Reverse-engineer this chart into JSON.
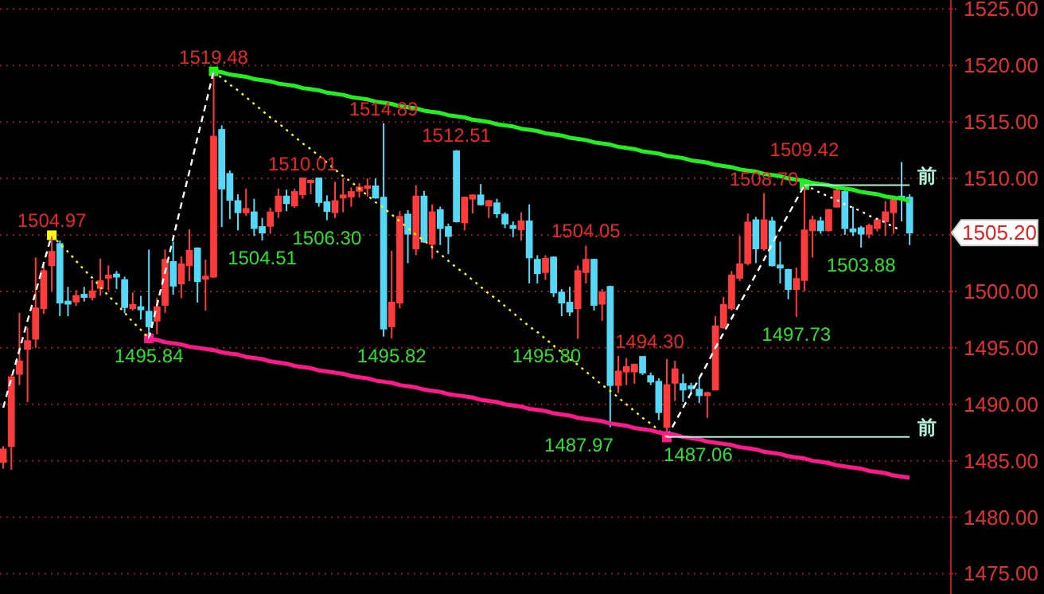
{
  "chart_data": {
    "type": "candlestick",
    "categories": [
      null,
      null,
      null,
      null,
      null,
      null,
      null,
      null,
      null,
      null,
      null,
      null,
      null,
      null,
      null,
      null,
      null,
      null,
      null,
      null,
      null,
      null,
      null,
      null,
      null,
      null,
      null,
      null,
      null,
      null,
      null,
      null,
      null,
      null,
      null,
      null,
      null,
      null,
      null,
      null,
      null,
      null,
      null,
      null,
      null,
      null,
      null,
      null,
      null,
      null,
      null,
      null,
      null,
      null,
      null,
      null,
      null,
      null,
      null,
      null,
      null,
      null,
      null,
      null,
      null,
      null,
      null,
      null,
      null,
      null,
      null,
      null,
      null,
      null,
      null,
      null,
      null,
      null,
      null,
      null,
      null,
      null,
      null,
      null,
      null,
      null,
      null,
      null,
      null,
      null,
      null,
      null,
      null,
      null,
      null,
      null,
      null,
      null,
      null,
      null,
      null,
      null,
      null,
      null,
      null,
      null,
      null,
      null,
      null,
      null,
      null,
      null,
      null
    ],
    "ylim": [
      1473.2,
      1525.8
    ],
    "yticks": [
      {
        "value": 1475,
        "label": "1475.00"
      },
      {
        "value": 1480,
        "label": "1480.00"
      },
      {
        "value": 1485,
        "label": "1485.00"
      },
      {
        "value": 1490,
        "label": "1490.00"
      },
      {
        "value": 1495,
        "label": "1495.00"
      },
      {
        "value": 1500,
        "label": "1500.00"
      },
      {
        "value": 1505,
        "label": null
      },
      {
        "value": 1510,
        "label": "1510.00"
      },
      {
        "value": 1515,
        "label": "1515.00"
      },
      {
        "value": 1520,
        "label": "1520.00"
      },
      {
        "value": 1525,
        "label": "1525.00"
      }
    ],
    "grid": "y",
    "tick_labels": "y",
    "legend": "right",
    "series": [
      {
        "ohlc": [
          [
            1484.9,
            1486.3,
            1484.3,
            1486.0
          ],
          [
            1486.3,
            1492.6,
            1484.2,
            1492.4
          ],
          [
            1492.7,
            1498.1,
            1491.7,
            1493.8
          ],
          [
            1494.9,
            1496.8,
            1490.2,
            1495.6
          ],
          [
            1495.8,
            1503.0,
            1495.0,
            1498.5
          ],
          [
            1498.5,
            1502.3,
            1498.0,
            1501.8
          ],
          [
            1502.3,
            1504.97,
            1500.0,
            1503.5
          ],
          [
            1504.2,
            1504.5,
            1497.8,
            1499.0
          ],
          [
            1499.1,
            1500.4,
            1497.8,
            1498.9
          ],
          [
            1499.1,
            1500.1,
            1498.7,
            1499.6
          ],
          [
            1499.7,
            1500.4,
            1499.1,
            1499.5
          ],
          [
            1499.5,
            1501.0,
            1499.2,
            1500.0
          ],
          [
            1500.3,
            1502.9,
            1499.6,
            1500.9
          ],
          [
            1501.2,
            1502.3,
            1500.1,
            1501.4
          ],
          [
            1501.5,
            1501.8,
            1500.2,
            1501.3
          ],
          [
            1501.0,
            1501.3,
            1498.1,
            1498.6
          ],
          [
            1498.5,
            1499.9,
            1498.3,
            1498.8
          ],
          [
            1498.6,
            1499.6,
            1497.5,
            1498.4
          ],
          [
            1498.2,
            1503.7,
            1495.84,
            1496.9
          ],
          [
            1497.4,
            1499.4,
            1496.2,
            1498.6
          ],
          [
            1498.8,
            1503.7,
            1498.1,
            1502.8
          ],
          [
            1502.6,
            1504.4,
            1499.7,
            1500.5
          ],
          [
            1500.7,
            1503.1,
            1499.4,
            1502.4
          ],
          [
            1502.3,
            1505.5,
            1500.9,
            1503.6
          ],
          [
            1503.8,
            1503.9,
            1499.0,
            1500.9
          ],
          [
            1501.1,
            1502.8,
            1498.3,
            1501.3
          ],
          [
            1501.3,
            1519.48,
            1501.2,
            1513.7
          ],
          [
            1514.3,
            1514.7,
            1505.7,
            1509.1
          ],
          [
            1510.4,
            1510.7,
            1506.4,
            1508.1
          ],
          [
            1508.0,
            1508.6,
            1505.4,
            1507.0
          ],
          [
            1507.0,
            1509.1,
            1506.7,
            1507.3
          ],
          [
            1507.0,
            1508.2,
            1504.9,
            1505.6
          ],
          [
            1505.7,
            1506.5,
            1504.51,
            1505.2
          ],
          [
            1505.8,
            1507.4,
            1505.1,
            1507.0
          ],
          [
            1507.1,
            1509.1,
            1506.5,
            1508.4
          ],
          [
            1508.4,
            1509.0,
            1507.1,
            1507.8
          ],
          [
            1507.6,
            1509.1,
            1507.4,
            1508.8
          ],
          [
            1508.6,
            1510.01,
            1508.2,
            1510.0
          ],
          [
            1509.7,
            1509.9,
            1508.6,
            1509.8
          ],
          [
            1510.0,
            1510.0,
            1507.5,
            1507.9
          ],
          [
            1507.9,
            1508.5,
            1506.3,
            1507.1
          ],
          [
            1507.0,
            1509.7,
            1506.5,
            1508.0
          ],
          [
            1508.3,
            1510.0,
            1507.0,
            1508.5
          ],
          [
            1508.4,
            1509.2,
            1507.5,
            1508.8
          ],
          [
            1508.9,
            1509.6,
            1508.3,
            1509.2
          ],
          [
            1509.2,
            1510.0,
            1508.4,
            1509.3
          ],
          [
            1509.3,
            1510.0,
            1508.2,
            1508.3
          ],
          [
            1508.3,
            1514.89,
            1496.0,
            1496.7
          ],
          [
            1496.9,
            1503.6,
            1495.82,
            1499.0
          ],
          [
            1499.0,
            1507.1,
            1498.5,
            1506.6
          ],
          [
            1506.8,
            1507.2,
            1502.5,
            1505.1
          ],
          [
            1503.8,
            1509.4,
            1503.2,
            1508.4
          ],
          [
            1508.4,
            1508.9,
            1504.3,
            1504.4
          ],
          [
            1504.2,
            1507.7,
            1502.9,
            1507.0
          ],
          [
            1507.2,
            1507.5,
            1504.1,
            1505.6
          ],
          [
            1505.7,
            1506.0,
            1503.3,
            1504.9
          ],
          [
            1512.4,
            1512.51,
            1506.1,
            1506.2
          ],
          [
            1506.1,
            1508.4,
            1505.4,
            1508.3
          ],
          [
            1508.2,
            1508.6,
            1506.9,
            1508.5
          ],
          [
            1508.5,
            1509.5,
            1507.6,
            1507.7
          ],
          [
            1507.6,
            1508.1,
            1506.5,
            1508.0
          ],
          [
            1507.8,
            1508.2,
            1506.5,
            1506.9
          ],
          [
            1506.8,
            1507.0,
            1505.6,
            1506.0
          ],
          [
            1505.8,
            1506.2,
            1504.8,
            1505.6
          ],
          [
            1505.5,
            1507.0,
            1504.5,
            1506.2
          ],
          [
            1506.2,
            1507.7,
            1500.7,
            1503.0
          ],
          [
            1502.8,
            1503.2,
            1500.7,
            1501.6
          ],
          [
            1501.7,
            1503.2,
            1501.0,
            1502.9
          ],
          [
            1503.0,
            1503.1,
            1499.5,
            1499.9
          ],
          [
            1499.9,
            1500.2,
            1497.8,
            1499.0
          ],
          [
            1499.0,
            1500.4,
            1497.8,
            1498.2
          ],
          [
            1498.5,
            1502.3,
            1495.8,
            1501.8
          ],
          [
            1501.7,
            1504.05,
            1500.7,
            1502.8
          ],
          [
            1502.8,
            1502.9,
            1498.3,
            1498.8
          ],
          [
            1498.9,
            1500.2,
            1497.4,
            1499.9
          ],
          [
            1500.4,
            1500.5,
            1487.97,
            1491.7
          ],
          [
            1491.7,
            1494.3,
            1491.0,
            1492.9
          ],
          [
            1492.9,
            1494.1,
            1491.7,
            1493.3
          ],
          [
            1492.9,
            1493.6,
            1491.8,
            1493.5
          ],
          [
            1494.2,
            1494.2,
            1492.6,
            1492.8
          ],
          [
            1492.5,
            1492.8,
            1491.7,
            1492.0
          ],
          [
            1492.0,
            1492.3,
            1488.6,
            1489.3
          ],
          [
            1488.0,
            1494.0,
            1487.06,
            1491.7
          ],
          [
            1491.9,
            1493.85,
            1490.3,
            1493.1
          ],
          [
            1491.8,
            1492.7,
            1490.2,
            1491.3
          ],
          [
            1491.6,
            1491.9,
            1490.9,
            1491.4
          ],
          [
            1491.3,
            1492.4,
            1490.1,
            1490.8
          ],
          [
            1490.8,
            1491.1,
            1488.8,
            1491.0
          ],
          [
            1491.3,
            1497.8,
            1491.3,
            1496.9
          ],
          [
            1496.8,
            1499.5,
            1496.7,
            1498.8
          ],
          [
            1498.5,
            1501.8,
            1498.3,
            1501.4
          ],
          [
            1501.2,
            1504.9,
            1500.9,
            1502.4
          ],
          [
            1502.5,
            1506.9,
            1502.3,
            1506.1
          ],
          [
            1506.3,
            1506.6,
            1502.5,
            1503.8
          ],
          [
            1503.8,
            1508.7,
            1503.6,
            1506.3
          ],
          [
            1506.2,
            1506.6,
            1502.2,
            1502.3
          ],
          [
            1502.3,
            1504.4,
            1500.7,
            1502.1
          ],
          [
            1501.9,
            1502.0,
            1499.3,
            1500.2
          ],
          [
            1500.2,
            1502.1,
            1497.73,
            1501.1
          ],
          [
            1501.0,
            1509.42,
            1500.0,
            1505.4
          ],
          [
            1505.4,
            1506.7,
            1503.0,
            1506.3
          ],
          [
            1506.2,
            1506.6,
            1505.1,
            1505.4
          ],
          [
            1505.4,
            1507.3,
            1505.3,
            1507.2
          ],
          [
            1507.5,
            1509.3,
            1507.4,
            1508.9
          ],
          [
            1508.8,
            1509.0,
            1505.0,
            1505.6
          ],
          [
            1505.5,
            1507.5,
            1504.9,
            1505.3
          ],
          [
            1505.6,
            1505.8,
            1503.88,
            1505.1
          ],
          [
            1505.1,
            1506.0,
            1504.7,
            1505.8
          ],
          [
            1505.6,
            1506.5,
            1505.3,
            1506.3
          ],
          [
            1506.2,
            1508.0,
            1504.9,
            1507.0
          ],
          [
            1507.0,
            1508.5,
            1505.1,
            1508.3
          ],
          [
            1508.4,
            1511.45,
            1506.2,
            1508.2
          ],
          [
            1508.3,
            1508.6,
            1504.1,
            1505.2
          ]
        ],
        "colors": [
          "#ff3b3b",
          "#ff3b3b",
          "#ff3b3b",
          "#ff3b3b",
          "#ff3b3b",
          "#ff3b3b",
          "#ff3b3b",
          "#54d8f5",
          "#54d8f5",
          "#ff3b3b",
          "#54d8f5",
          "#ff3b3b",
          "#ff3b3b",
          "#ff3b3b",
          "#54d8f5",
          "#54d8f5",
          "#ff3b3b",
          "#54d8f5",
          "#54d8f5",
          "#ff3b3b",
          "#ff3b3b",
          "#54d8f5",
          "#ff3b3b",
          "#ff3b3b",
          "#54d8f5",
          "#ff3b3b",
          "#ff3b3b",
          "#54d8f5",
          "#54d8f5",
          "#54d8f5",
          "#ff3b3b",
          "#54d8f5",
          "#54d8f5",
          "#ff3b3b",
          "#ff3b3b",
          "#54d8f5",
          "#ff3b3b",
          "#ff3b3b",
          "#ff3b3b",
          "#54d8f5",
          "#54d8f5",
          "#ff3b3b",
          "#ff3b3b",
          "#ff3b3b",
          "#ff3b3b",
          "#ff3b3b",
          "#54d8f5",
          "#54d8f5",
          "#ff3b3b",
          "#ff3b3b",
          "#54d8f5",
          "#ff3b3b",
          "#54d8f5",
          "#ff3b3b",
          "#54d8f5",
          "#54d8f5",
          "#54d8f5",
          "#ff3b3b",
          "#ff3b3b",
          "#54d8f5",
          "#ff3b3b",
          "#54d8f5",
          "#54d8f5",
          "#54d8f5",
          "#ff3b3b",
          "#54d8f5",
          "#54d8f5",
          "#ff3b3b",
          "#54d8f5",
          "#54d8f5",
          "#54d8f5",
          "#ff3b3b",
          "#ff3b3b",
          "#54d8f5",
          "#ff3b3b",
          "#54d8f5",
          "#ff3b3b",
          "#ff3b3b",
          "#ff3b3b",
          "#54d8f5",
          "#54d8f5",
          "#54d8f5",
          "#ff3b3b",
          "#ff3b3b",
          "#54d8f5",
          "#54d8f5",
          "#54d8f5",
          "#ff3b3b",
          "#ff3b3b",
          "#ff3b3b",
          "#ff3b3b",
          "#ff3b3b",
          "#ff3b3b",
          "#54d8f5",
          "#ff3b3b",
          "#54d8f5",
          "#54d8f5",
          "#54d8f5",
          "#ff3b3b",
          "#ff3b3b",
          "#ff3b3b",
          "#54d8f5",
          "#ff3b3b",
          "#ff3b3b",
          "#54d8f5",
          "#54d8f5",
          "#54d8f5",
          "#ff3b3b",
          "#ff3b3b",
          "#ff3b3b",
          "#ff3b3b",
          "#54d8f5",
          "#54d8f5"
        ]
      },
      {
        "type": "line",
        "color": "#ffffff",
        "line_style": "dashed",
        "values": [
          1489.7,
          1492.3,
          1494.8,
          1497.4,
          1499.9,
          1502.5,
          1505.0,
          null,
          null,
          null,
          null,
          null,
          null,
          null,
          null,
          null,
          null,
          null,
          1495.8,
          1498.8,
          1501.7,
          1504.7,
          1507.7,
          1510.6,
          1513.6,
          1516.5,
          1519.5,
          null,
          null,
          null,
          null,
          null,
          null,
          null,
          null,
          null,
          null,
          null,
          null,
          null,
          null,
          null,
          null,
          null,
          null,
          null,
          null,
          null,
          null,
          null,
          null,
          null,
          null,
          null,
          null,
          null,
          null,
          null,
          null,
          null,
          null,
          null,
          null,
          null,
          null,
          null,
          null,
          null,
          null,
          null,
          null,
          null,
          null,
          null,
          null,
          null,
          null,
          null,
          null,
          null,
          null,
          null,
          1487.1,
          1488.4,
          1489.7,
          1491.0,
          1492.3,
          1493.6,
          1495.0,
          1496.3,
          1497.6,
          1498.9,
          1500.2,
          1501.5,
          1502.8,
          1504.2,
          1505.5,
          1506.8,
          1508.1,
          1509.4,
          null,
          null,
          null,
          null,
          null,
          null,
          null,
          null,
          null,
          null,
          null,
          null,
          null
        ]
      },
      {
        "type": "line",
        "color": "#ffff00",
        "line_style": "dotted",
        "values": [
          null,
          null,
          null,
          null,
          null,
          null,
          1505.0,
          1504.2,
          1503.5,
          1502.7,
          1501.9,
          1501.2,
          1500.4,
          1499.6,
          1498.9,
          1498.1,
          1497.3,
          1496.6,
          1495.8,
          null,
          null,
          null,
          null,
          null,
          null,
          null,
          1519.5,
          1518.9,
          1518.3,
          1517.8,
          1517.2,
          1516.6,
          1516.0,
          1515.4,
          1514.9,
          1514.3,
          1513.7,
          1513.1,
          1512.6,
          1512.0,
          1511.4,
          1510.8,
          1510.2,
          1509.7,
          1509.1,
          1508.5,
          1507.9,
          1507.4,
          1506.8,
          1506.2,
          1505.6,
          1505.0,
          1504.5,
          1503.9,
          1503.3,
          1502.7,
          1502.1,
          1501.6,
          1501.0,
          1500.4,
          1499.8,
          1499.3,
          1498.7,
          1498.1,
          1497.5,
          1496.9,
          1496.4,
          1495.8,
          1495.2,
          1494.6,
          1494.0,
          1493.5,
          1492.9,
          1492.3,
          1491.7,
          1491.2,
          1490.6,
          1490.0,
          1489.4,
          1488.8,
          1488.3,
          1487.7,
          1487.1,
          null,
          null,
          null,
          null,
          null,
          null,
          null,
          null,
          null,
          null,
          null,
          null,
          null,
          null,
          null,
          null,
          null,
          null,
          null,
          null,
          null,
          null,
          null,
          null,
          null,
          null,
          null,
          null,
          null,
          null
        ]
      },
      {
        "type": "line",
        "color": "#ffffff",
        "line_style": "dotted",
        "values": [
          null,
          null,
          null,
          null,
          null,
          null,
          null,
          null,
          null,
          null,
          null,
          null,
          null,
          null,
          null,
          null,
          null,
          null,
          null,
          null,
          null,
          null,
          null,
          null,
          null,
          null,
          null,
          null,
          null,
          null,
          null,
          null,
          null,
          null,
          null,
          null,
          null,
          null,
          null,
          null,
          null,
          null,
          null,
          null,
          null,
          null,
          null,
          null,
          null,
          null,
          null,
          null,
          null,
          null,
          null,
          null,
          null,
          null,
          null,
          null,
          null,
          null,
          null,
          null,
          null,
          null,
          null,
          null,
          null,
          null,
          null,
          null,
          null,
          null,
          null,
          null,
          null,
          null,
          null,
          null,
          null,
          null,
          null,
          null,
          null,
          null,
          null,
          null,
          null,
          null,
          null,
          null,
          null,
          null,
          null,
          null,
          null,
          null,
          null,
          1509.4,
          1509.1,
          1508.7,
          1508.4,
          1508.1,
          1507.7,
          1507.4,
          1507.1,
          1506.7,
          1506.4,
          1506.1,
          1505.7,
          1505.4,
          null
        ]
      },
      {
        "type": "line",
        "color": "#22ee22",
        "line_style": "solid",
        "values": [
          null,
          null,
          null,
          null,
          null,
          null,
          null,
          null,
          null,
          null,
          null,
          null,
          null,
          null,
          null,
          null,
          null,
          null,
          null,
          null,
          null,
          null,
          null,
          null,
          null,
          null,
          1519.5,
          1519.4,
          1519.2,
          1519.1,
          1519.0,
          1518.8,
          1518.7,
          1518.6,
          1518.4,
          1518.3,
          1518.2,
          1518.0,
          1517.9,
          1517.8,
          1517.6,
          1517.5,
          1517.4,
          1517.2,
          1517.1,
          1517.0,
          1516.8,
          1516.7,
          1516.6,
          1516.4,
          1516.3,
          1516.2,
          1516.0,
          1515.9,
          1515.8,
          1515.6,
          1515.5,
          1515.4,
          1515.2,
          1515.1,
          1515.0,
          1514.8,
          1514.7,
          1514.6,
          1514.4,
          1514.3,
          1514.2,
          1514.0,
          1513.9,
          1513.8,
          1513.6,
          1513.5,
          1513.4,
          1513.2,
          1513.1,
          1513.0,
          1512.8,
          1512.7,
          1512.6,
          1512.4,
          1512.3,
          1512.2,
          1512.0,
          1511.9,
          1511.8,
          1511.6,
          1511.5,
          1511.4,
          1511.2,
          1511.1,
          1511.0,
          1510.8,
          1510.7,
          1510.6,
          1510.4,
          1510.3,
          1510.2,
          1510.0,
          1509.9,
          1509.8,
          1509.6,
          1509.5,
          1509.4,
          1509.2,
          1509.1,
          1509.0,
          1508.8,
          1508.7,
          1508.6,
          1508.4,
          1508.3,
          1508.2,
          1508.0
        ]
      },
      {
        "type": "line",
        "color": "#ff1a8c",
        "line_style": "solid",
        "values": [
          null,
          null,
          null,
          null,
          null,
          null,
          null,
          null,
          null,
          null,
          null,
          null,
          null,
          null,
          null,
          null,
          null,
          null,
          1495.8,
          1495.7,
          1495.5,
          1495.4,
          1495.3,
          1495.1,
          1495.0,
          1494.9,
          1494.8,
          1494.6,
          1494.5,
          1494.4,
          1494.2,
          1494.1,
          1494.0,
          1493.8,
          1493.7,
          1493.6,
          1493.4,
          1493.3,
          1493.2,
          1493.0,
          1492.9,
          1492.8,
          1492.7,
          1492.5,
          1492.4,
          1492.3,
          1492.1,
          1492.0,
          1491.9,
          1491.7,
          1491.6,
          1491.5,
          1491.3,
          1491.2,
          1491.1,
          1490.9,
          1490.8,
          1490.7,
          1490.6,
          1490.4,
          1490.3,
          1490.2,
          1490.0,
          1489.9,
          1489.8,
          1489.6,
          1489.5,
          1489.4,
          1489.2,
          1489.1,
          1489.0,
          1488.8,
          1488.7,
          1488.6,
          1488.5,
          1488.3,
          1488.2,
          1488.1,
          1487.9,
          1487.8,
          1487.7,
          1487.5,
          1487.4,
          1487.3,
          1487.1,
          1487.0,
          1486.9,
          1486.7,
          1486.6,
          1486.5,
          1486.4,
          1486.2,
          1486.1,
          1486.0,
          1485.8,
          1485.7,
          1485.6,
          1485.4,
          1485.3,
          1485.2,
          1485.0,
          1484.9,
          1484.8,
          1484.6,
          1484.5,
          1484.4,
          1484.3,
          1484.1,
          1484.0,
          1483.9,
          1483.7,
          1483.6,
          1483.5
        ]
      },
      {
        "type": "line",
        "name": "前",
        "color": "#aef5dc",
        "line_style": "solid",
        "values": [
          null,
          null,
          null,
          null,
          null,
          null,
          null,
          null,
          null,
          null,
          null,
          null,
          null,
          null,
          null,
          null,
          null,
          null,
          null,
          null,
          null,
          null,
          null,
          null,
          null,
          null,
          null,
          null,
          null,
          null,
          null,
          null,
          null,
          null,
          null,
          null,
          null,
          null,
          null,
          null,
          null,
          null,
          null,
          null,
          null,
          null,
          null,
          null,
          null,
          null,
          null,
          null,
          null,
          null,
          null,
          null,
          null,
          null,
          null,
          null,
          null,
          null,
          null,
          null,
          null,
          null,
          null,
          null,
          null,
          null,
          null,
          null,
          null,
          null,
          null,
          null,
          null,
          null,
          null,
          null,
          null,
          null,
          null,
          null,
          null,
          null,
          null,
          null,
          null,
          null,
          null,
          null,
          null,
          null,
          null,
          null,
          null,
          null,
          null,
          1509.4,
          1509.4,
          1509.4,
          1509.4,
          1509.4,
          1509.4,
          1509.4,
          1509.4,
          1509.4,
          1509.4,
          1509.4,
          1509.4,
          1509.4,
          1509.4
        ]
      },
      {
        "type": "line",
        "name": "前",
        "color": "#aef5dc",
        "line_style": "solid",
        "values": [
          null,
          null,
          null,
          null,
          null,
          null,
          null,
          null,
          null,
          null,
          null,
          null,
          null,
          null,
          null,
          null,
          null,
          null,
          null,
          null,
          null,
          null,
          null,
          null,
          null,
          null,
          null,
          null,
          null,
          null,
          null,
          null,
          null,
          null,
          null,
          null,
          null,
          null,
          null,
          null,
          null,
          null,
          null,
          null,
          null,
          null,
          null,
          null,
          null,
          null,
          null,
          null,
          null,
          null,
          null,
          null,
          null,
          null,
          null,
          null,
          null,
          null,
          null,
          null,
          null,
          null,
          null,
          null,
          null,
          null,
          null,
          null,
          null,
          null,
          null,
          null,
          null,
          null,
          null,
          null,
          null,
          null,
          1487.1,
          1487.1,
          1487.1,
          1487.1,
          1487.1,
          1487.1,
          1487.1,
          1487.1,
          1487.1,
          1487.1,
          1487.1,
          1487.1,
          1487.1,
          1487.1,
          1487.1,
          1487.1,
          1487.1,
          1487.1,
          1487.1,
          1487.1,
          1487.1,
          1487.1,
          1487.1,
          1487.1,
          1487.1,
          1487.1,
          1487.1,
          1487.1,
          1487.1,
          1487.1,
          1487.1
        ]
      },
      {
        "type": "scatter",
        "marker": "square",
        "values": [
          null,
          null,
          null,
          null,
          null,
          null,
          1504.97,
          null,
          null,
          null,
          null,
          null,
          null,
          null,
          null,
          null,
          null,
          null,
          1495.84,
          null,
          null,
          null,
          null,
          null,
          null,
          null,
          1519.48,
          null,
          null,
          null,
          null,
          null,
          null,
          null,
          null,
          null,
          null,
          null,
          null,
          null,
          null,
          null,
          null,
          null,
          null,
          null,
          null,
          null,
          null,
          null,
          null,
          null,
          null,
          null,
          null,
          null,
          null,
          null,
          null,
          null,
          null,
          null,
          null,
          null,
          null,
          null,
          null,
          null,
          null,
          null,
          null,
          null,
          null,
          null,
          null,
          null,
          null,
          null,
          null,
          null,
          null,
          null,
          1487.06,
          null,
          null,
          null,
          null,
          null,
          null,
          null,
          null,
          null,
          null,
          null,
          null,
          null,
          null,
          null,
          null,
          1509.42,
          null,
          null,
          null,
          null,
          null,
          null,
          null,
          null,
          null,
          null,
          null,
          null,
          null
        ],
        "colors": [
          null,
          null,
          null,
          null,
          null,
          null,
          "#ffff00",
          null,
          null,
          null,
          null,
          null,
          null,
          null,
          null,
          null,
          null,
          null,
          "#ff1a8c",
          null,
          null,
          null,
          null,
          null,
          null,
          null,
          "#22ee22",
          null,
          null,
          null,
          null,
          null,
          null,
          null,
          null,
          null,
          null,
          null,
          null,
          null,
          null,
          null,
          null,
          null,
          null,
          null,
          null,
          null,
          null,
          null,
          null,
          null,
          null,
          null,
          null,
          null,
          null,
          null,
          null,
          null,
          null,
          null,
          null,
          null,
          null,
          null,
          null,
          null,
          null,
          null,
          null,
          null,
          null,
          null,
          null,
          null,
          null,
          null,
          null,
          null,
          null,
          null,
          "#ff1a8c",
          null,
          null,
          null,
          null,
          null,
          null,
          null,
          null,
          null,
          null,
          null,
          null,
          null,
          null,
          null,
          null,
          "#22ee22",
          null,
          null,
          null,
          null,
          null,
          null,
          null,
          null,
          null,
          null,
          null,
          null,
          null
        ]
      }
    ],
    "annotations": [
      {
        "text": "1504.97",
        "y": 1504.97
      },
      {
        "text": "1495.84",
        "y": 1495.84
      },
      {
        "text": "1519.48",
        "y": 1519.48
      },
      {
        "text": "1504.51",
        "y": 1504.51
      },
      {
        "text": "1510.01",
        "y": 1510.01
      },
      {
        "text": "1506.30",
        "y": 1506.3
      },
      {
        "text": "1514.89",
        "y": 1514.89
      },
      {
        "text": "1495.82",
        "y": 1495.82
      },
      {
        "text": "1512.51",
        "y": 1512.51
      },
      {
        "text": "1495.80",
        "y": 1495.8
      },
      {
        "text": "1504.05",
        "y": 1504.05
      },
      {
        "text": "1487.97",
        "y": 1487.97
      },
      {
        "text": "1494.30",
        "y": 1494.3
      },
      {
        "text": "1487.06",
        "y": 1487.06
      },
      {
        "text": "1508.70",
        "y": 1508.7
      },
      {
        "text": "1497.73",
        "y": 1497.73
      },
      {
        "text": "1509.42",
        "y": 1509.42
      },
      {
        "text": "1503.88",
        "y": 1503.88
      },
      "1505.20"
    ]
  }
}
